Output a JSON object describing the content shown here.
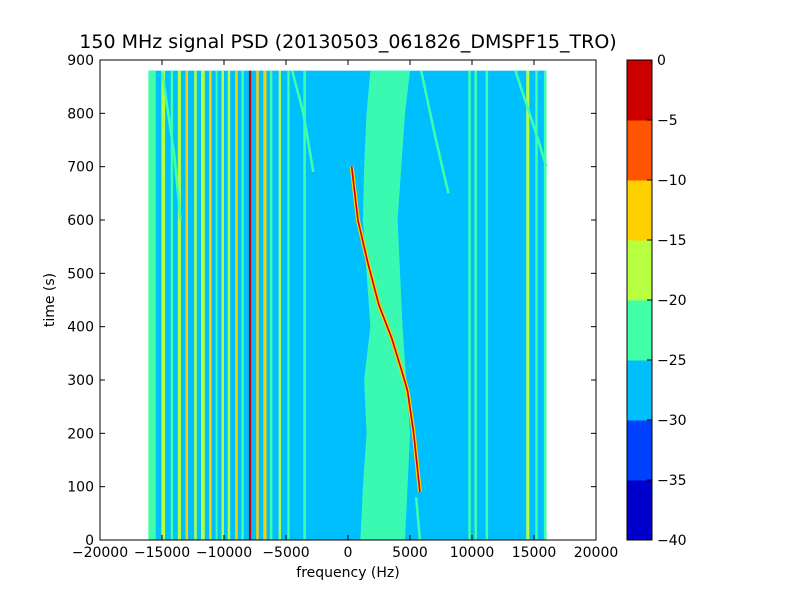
{
  "chart_data": {
    "type": "heatmap",
    "title": "150 MHz signal PSD (20130503_061826_DMSPF15_TRO)",
    "xlabel": "frequency (Hz)",
    "ylabel": "time (s)",
    "xlim": [
      -20000,
      20000
    ],
    "ylim": [
      0,
      900
    ],
    "data_extent": {
      "x": [
        -16000,
        16000
      ],
      "y": [
        0,
        880
      ]
    },
    "x_ticks": [
      "−20000",
      "−15000",
      "−10000",
      "−5000",
      "0",
      "5000",
      "10000",
      "15000",
      "20000"
    ],
    "y_ticks": [
      "0",
      "100",
      "200",
      "300",
      "400",
      "500",
      "600",
      "700",
      "800",
      "900"
    ],
    "colorbar": {
      "ticks": [
        "0",
        "−5",
        "−10",
        "−15",
        "−20",
        "−25",
        "−30",
        "−35",
        "−40"
      ],
      "levels": [
        {
          "min": -40,
          "max": -35,
          "color": "#0000cc"
        },
        {
          "min": -35,
          "max": -30,
          "color": "#0040ff"
        },
        {
          "min": -30,
          "max": -25,
          "color": "#00bfff"
        },
        {
          "min": -25,
          "max": -20,
          "color": "#40ffa8"
        },
        {
          "min": -20,
          "max": -15,
          "color": "#b8ff40"
        },
        {
          "min": -15,
          "max": -10,
          "color": "#ffd000"
        },
        {
          "min": -10,
          "max": -5,
          "color": "#ff5500"
        },
        {
          "min": -5,
          "max": 0,
          "color": "#cc0000"
        }
      ]
    },
    "background_level_db": -27.5,
    "vertical_lines": [
      {
        "f": -15800,
        "w": 600,
        "db": -22
      },
      {
        "f": -14900,
        "w": 300,
        "db": -17
      },
      {
        "f": -14200,
        "w": 200,
        "db": -22
      },
      {
        "f": -13600,
        "w": 250,
        "db": -17
      },
      {
        "f": -13000,
        "w": 200,
        "db": -12
      },
      {
        "f": -12300,
        "w": 200,
        "db": -17
      },
      {
        "f": -11700,
        "w": 300,
        "db": -17
      },
      {
        "f": -11100,
        "w": 200,
        "db": -12
      },
      {
        "f": -10600,
        "w": 150,
        "db": -22
      },
      {
        "f": -10100,
        "w": 200,
        "db": -17
      },
      {
        "f": -9600,
        "w": 200,
        "db": -17
      },
      {
        "f": -9000,
        "w": 200,
        "db": -12
      },
      {
        "f": -8500,
        "w": 200,
        "db": -22
      },
      {
        "f": -7900,
        "w": 180,
        "db": -3
      },
      {
        "f": -7300,
        "w": 200,
        "db": -12
      },
      {
        "f": -6700,
        "w": 250,
        "db": -12
      },
      {
        "f": -6200,
        "w": 200,
        "db": -22
      },
      {
        "f": -5500,
        "w": 180,
        "db": -17
      },
      {
        "f": -4800,
        "w": 180,
        "db": -22
      },
      {
        "f": -3500,
        "w": 200,
        "db": -22
      },
      {
        "f": 9800,
        "w": 200,
        "db": -22
      },
      {
        "f": 10300,
        "w": 200,
        "db": -22
      },
      {
        "f": 11200,
        "w": 200,
        "db": -22
      },
      {
        "f": 14500,
        "w": 250,
        "db": -17
      },
      {
        "f": 15200,
        "w": 200,
        "db": -22
      },
      {
        "f": 15900,
        "w": 200,
        "db": -22
      }
    ],
    "noise_band": {
      "db": -22,
      "points": [
        {
          "t": 0,
          "f0": 1000,
          "f1": 4600
        },
        {
          "t": 100,
          "f0": 1200,
          "f1": 4800
        },
        {
          "t": 200,
          "f0": 1500,
          "f1": 5000
        },
        {
          "t": 300,
          "f0": 1300,
          "f1": 4700
        },
        {
          "t": 400,
          "f0": 1800,
          "f1": 4400
        },
        {
          "t": 500,
          "f0": 1500,
          "f1": 4200
        },
        {
          "t": 600,
          "f0": 1200,
          "f1": 4000
        },
        {
          "t": 700,
          "f0": 1300,
          "f1": 4300
        },
        {
          "t": 800,
          "f0": 1500,
          "f1": 4600
        },
        {
          "t": 880,
          "f0": 1800,
          "f1": 5000
        }
      ]
    },
    "doppler_trace": {
      "db": -3,
      "points": [
        {
          "f": 5800,
          "t": 90
        },
        {
          "f": 5300,
          "t": 200
        },
        {
          "f": 4800,
          "t": 280
        },
        {
          "f": 4300,
          "t": 320
        },
        {
          "f": 3500,
          "t": 380
        },
        {
          "f": 2500,
          "t": 440
        },
        {
          "f": 1600,
          "t": 520
        },
        {
          "f": 800,
          "t": 600
        },
        {
          "f": 300,
          "t": 700
        }
      ]
    },
    "faint_traces": [
      {
        "db": -22,
        "points": [
          {
            "f": -15000,
            "t": 880
          },
          {
            "f": -14000,
            "t": 720
          },
          {
            "f": -13500,
            "t": 600
          }
        ]
      },
      {
        "db": -22,
        "points": [
          {
            "f": -4500,
            "t": 880
          },
          {
            "f": -3600,
            "t": 800
          },
          {
            "f": -2800,
            "t": 690
          }
        ]
      },
      {
        "db": -22,
        "points": [
          {
            "f": 5900,
            "t": 880
          },
          {
            "f": 7000,
            "t": 760
          },
          {
            "f": 8100,
            "t": 650
          }
        ]
      },
      {
        "db": -22,
        "points": [
          {
            "f": 13500,
            "t": 880
          },
          {
            "f": 15200,
            "t": 760
          },
          {
            "f": 16000,
            "t": 700
          }
        ]
      },
      {
        "db": -22,
        "points": [
          {
            "f": 5500,
            "t": 80
          },
          {
            "f": 5800,
            "t": 0
          }
        ]
      }
    ]
  }
}
